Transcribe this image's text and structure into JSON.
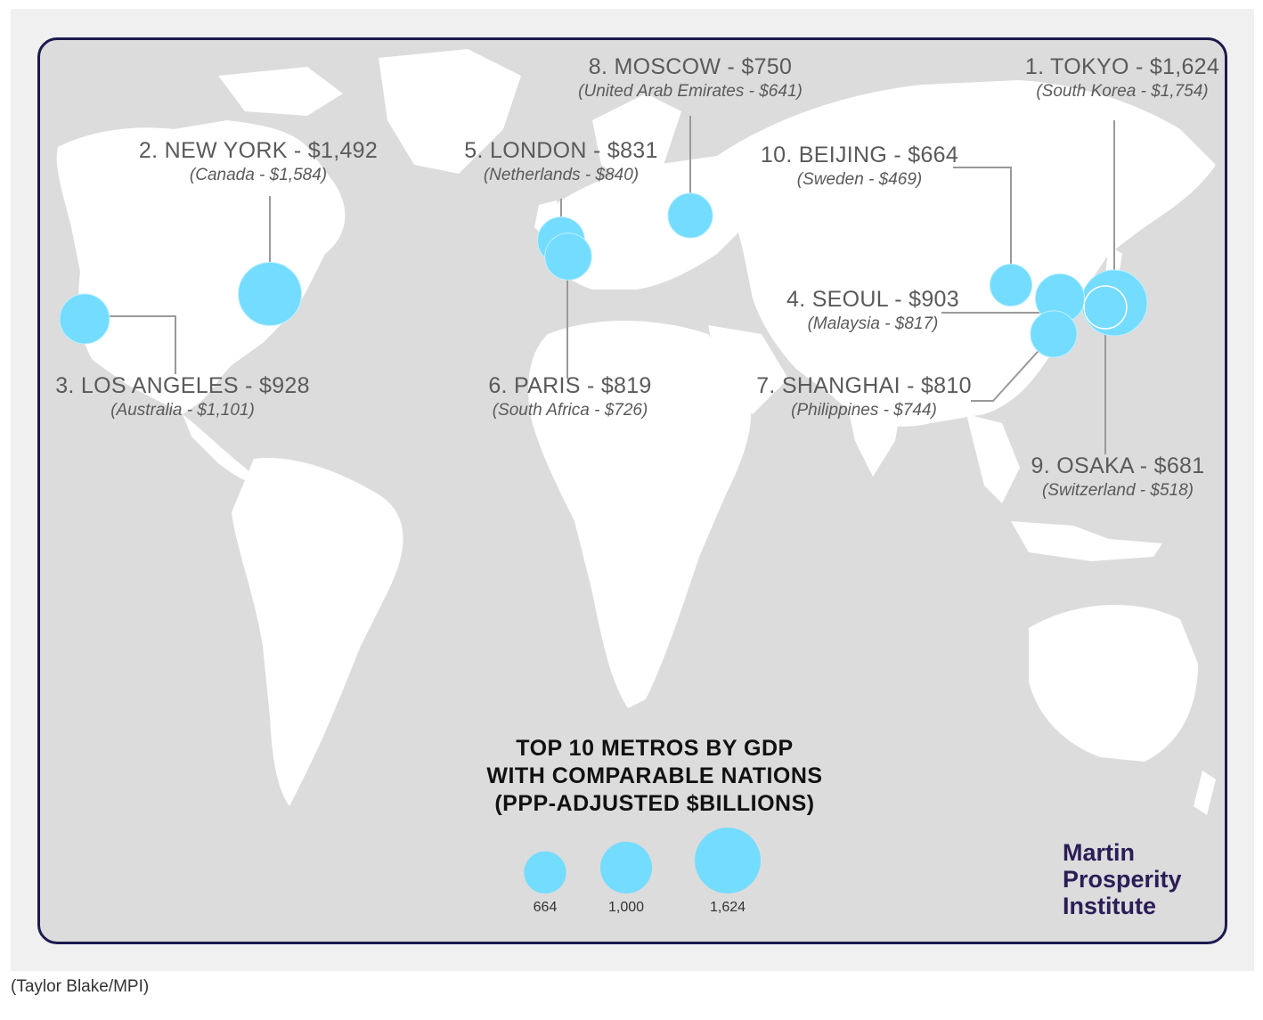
{
  "map": {
    "title_lines": [
      "TOP 10 METROS BY GDP",
      "WITH COMPARABLE NATIONS",
      "(PPP-ADJUSTED $BILLIONS)"
    ],
    "colors": {
      "bubble": "#74dcff",
      "land": "#ffffff",
      "water": "#dcdcdc",
      "frame": "#1c1a4e",
      "brand": "#2b1d57"
    },
    "metros": [
      {
        "city": "1. TOKYO - $1,624",
        "nation": "(South Korea - $1,754)",
        "gdp": 1624
      },
      {
        "city": "2. NEW YORK - $1,492",
        "nation": "(Canada - $1,584)",
        "gdp": 1492
      },
      {
        "city": "3. LOS ANGELES - $928",
        "nation": "(Australia - $1,101)",
        "gdp": 928
      },
      {
        "city": "4. SEOUL - $903",
        "nation": "(Malaysia - $817)",
        "gdp": 903
      },
      {
        "city": "5. LONDON - $831",
        "nation": "(Netherlands - $840)",
        "gdp": 831
      },
      {
        "city": "6. PARIS - $819",
        "nation": "(South Africa - $726)",
        "gdp": 819
      },
      {
        "city": "7. SHANGHAI - $810",
        "nation": "(Philippines - $744)",
        "gdp": 810
      },
      {
        "city": "8. MOSCOW - $750",
        "nation": "(United Arab Emirates - $641)",
        "gdp": 750
      },
      {
        "city": "9. OSAKA - $681",
        "nation": "(Switzerland - $518)",
        "gdp": 681
      },
      {
        "city": "10. BEIJING - $664",
        "nation": "(Sweden - $469)",
        "gdp": 664
      }
    ],
    "legend": [
      {
        "label": "664",
        "value": 664
      },
      {
        "label": "1,000",
        "value": 1000
      },
      {
        "label": "1,624",
        "value": 1624
      }
    ],
    "brand_lines": [
      "Martin",
      "Prosperity",
      "Institute"
    ]
  },
  "caption": "(Taylor Blake/MPI)"
}
